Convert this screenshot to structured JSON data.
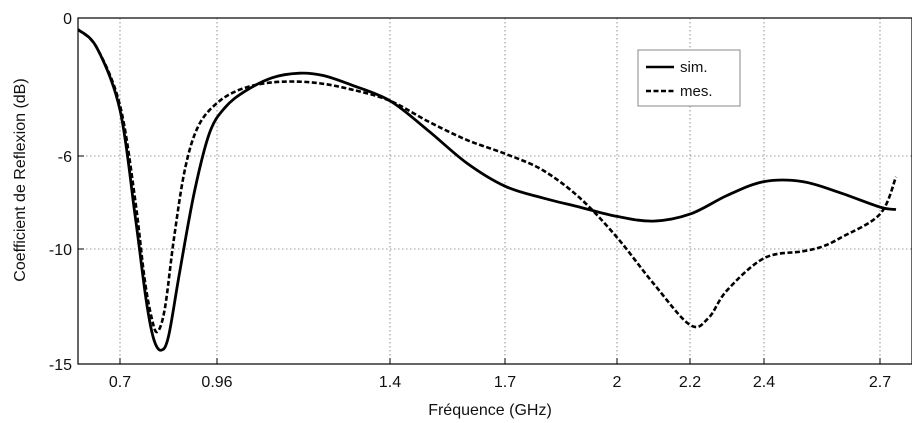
{
  "chart_data": {
    "type": "line",
    "title": "",
    "xlabel": "Fréquence (GHz)",
    "ylabel": "Coefficient de Reflexion (dB)",
    "x_ticks": [
      0.7,
      0.96,
      1.4,
      1.7,
      2,
      2.2,
      2.4,
      2.7
    ],
    "x_tick_labels": [
      "0.7",
      "0.96",
      "1.4",
      "1.7",
      "2",
      "2.2",
      "2.4",
      "2.7"
    ],
    "y_ticks": [
      0,
      -6,
      -10,
      -15
    ],
    "y_tick_labels": [
      "0",
      "-6",
      "-10",
      "-15"
    ],
    "ylim": [
      -15,
      0
    ],
    "grid": true,
    "legend_position": "top-right",
    "series": [
      {
        "name": "sim.",
        "style": "solid",
        "color": "#000000",
        "points": [
          [
            0.6,
            -0.5
          ],
          [
            0.645,
            -1.3
          ],
          [
            0.7,
            -4.0
          ],
          [
            0.74,
            -8.5
          ],
          [
            0.77,
            -12.2
          ],
          [
            0.79,
            -13.9
          ],
          [
            0.81,
            -14.4
          ],
          [
            0.83,
            -13.8
          ],
          [
            0.86,
            -11.0
          ],
          [
            0.9,
            -7.5
          ],
          [
            0.94,
            -5.0
          ],
          [
            0.98,
            -3.9
          ],
          [
            1.03,
            -3.2
          ],
          [
            1.1,
            -2.6
          ],
          [
            1.17,
            -2.4
          ],
          [
            1.23,
            -2.5
          ],
          [
            1.3,
            -2.9
          ],
          [
            1.4,
            -3.6
          ],
          [
            1.5,
            -4.9
          ],
          [
            1.6,
            -6.3
          ],
          [
            1.7,
            -7.3
          ],
          [
            1.8,
            -7.8
          ],
          [
            1.9,
            -8.2
          ],
          [
            2.0,
            -8.6
          ],
          [
            2.1,
            -8.8
          ],
          [
            2.2,
            -8.5
          ],
          [
            2.3,
            -7.7
          ],
          [
            2.4,
            -7.1
          ],
          [
            2.5,
            -7.1
          ],
          [
            2.6,
            -7.6
          ],
          [
            2.7,
            -8.2
          ],
          [
            2.75,
            -8.3
          ]
        ]
      },
      {
        "name": "mes.",
        "style": "dashed",
        "color": "#000000",
        "points": [
          [
            0.6,
            -0.5
          ],
          [
            0.645,
            -1.3
          ],
          [
            0.7,
            -3.8
          ],
          [
            0.74,
            -7.8
          ],
          [
            0.765,
            -11.2
          ],
          [
            0.785,
            -13.0
          ],
          [
            0.8,
            -13.6
          ],
          [
            0.82,
            -12.6
          ],
          [
            0.845,
            -9.5
          ],
          [
            0.875,
            -6.5
          ],
          [
            0.91,
            -4.7
          ],
          [
            0.96,
            -3.7
          ],
          [
            1.02,
            -3.1
          ],
          [
            1.1,
            -2.8
          ],
          [
            1.2,
            -2.8
          ],
          [
            1.3,
            -3.1
          ],
          [
            1.4,
            -3.6
          ],
          [
            1.5,
            -4.5
          ],
          [
            1.6,
            -5.3
          ],
          [
            1.7,
            -5.9
          ],
          [
            1.8,
            -6.6
          ],
          [
            1.9,
            -7.8
          ],
          [
            2.0,
            -9.5
          ],
          [
            2.1,
            -11.5
          ],
          [
            2.2,
            -13.3
          ],
          [
            2.25,
            -13.0
          ],
          [
            2.3,
            -11.8
          ],
          [
            2.4,
            -10.4
          ],
          [
            2.5,
            -10.1
          ],
          [
            2.55,
            -9.9
          ],
          [
            2.6,
            -9.5
          ],
          [
            2.7,
            -8.5
          ],
          [
            2.75,
            -6.9
          ]
        ]
      }
    ]
  }
}
